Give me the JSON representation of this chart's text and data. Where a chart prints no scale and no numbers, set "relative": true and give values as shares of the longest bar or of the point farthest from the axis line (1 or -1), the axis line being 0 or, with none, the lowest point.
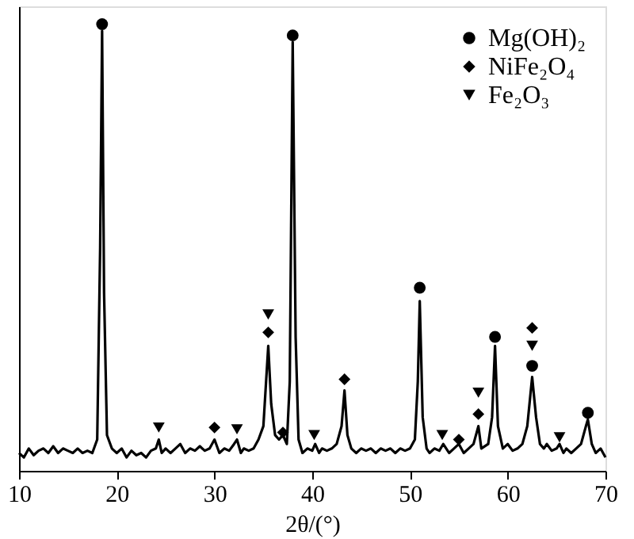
{
  "chart_data": {
    "type": "line",
    "xlabel": "2θ/(°)",
    "relative": true,
    "xlim": [
      10,
      70
    ],
    "xticks": [
      10,
      20,
      30,
      40,
      50,
      60,
      70
    ],
    "tick_labels": "x",
    "legend": "top right",
    "series": [
      {
        "color": "#000000",
        "x": [
          10,
          10.5,
          11,
          11.5,
          12,
          12.5,
          13,
          13.5,
          14,
          14.5,
          15,
          15.5,
          16,
          16.5,
          17,
          17.5,
          18,
          18.3,
          18.5,
          18.7,
          19,
          19.5,
          20,
          20.5,
          21,
          21.5,
          22,
          22.5,
          23,
          23.5,
          24,
          24.3,
          24.6,
          25,
          25.5,
          26,
          26.5,
          27,
          27.5,
          28,
          28.5,
          29,
          29.5,
          30,
          30.5,
          31,
          31.5,
          32,
          32.3,
          32.7,
          33,
          33.5,
          34,
          34.5,
          35,
          35.5,
          35.8,
          36.2,
          36.6,
          37,
          37.4,
          37.7,
          38,
          38.3,
          38.6,
          39,
          39.5,
          40,
          40.3,
          40.7,
          41,
          41.5,
          42,
          42.5,
          43,
          43.3,
          43.6,
          44,
          44.5,
          45,
          45.5,
          46,
          46.5,
          47,
          47.5,
          48,
          48.5,
          49,
          49.5,
          50,
          50.5,
          50.8,
          51,
          51.3,
          51.7,
          52,
          52.5,
          53,
          53.4,
          54,
          54.5,
          55,
          55.5,
          56,
          56.5,
          57,
          57.3,
          58,
          58.4,
          58.7,
          59,
          59.5,
          60,
          60.5,
          61,
          61.5,
          62,
          62.5,
          62.9,
          63.3,
          63.7,
          64,
          64.5,
          65,
          65.3,
          65.7,
          66,
          66.5,
          67,
          67.5,
          68,
          68.2,
          68.6,
          69,
          69.5,
          70
        ],
        "values": [
          0.04,
          0.03,
          0.05,
          0.035,
          0.045,
          0.05,
          0.04,
          0.055,
          0.04,
          0.05,
          0.045,
          0.04,
          0.05,
          0.04,
          0.045,
          0.04,
          0.07,
          0.5,
          0.985,
          0.4,
          0.08,
          0.05,
          0.04,
          0.05,
          0.03,
          0.045,
          0.035,
          0.04,
          0.03,
          0.045,
          0.05,
          0.07,
          0.04,
          0.05,
          0.04,
          0.05,
          0.06,
          0.04,
          0.05,
          0.045,
          0.055,
          0.045,
          0.05,
          0.07,
          0.04,
          0.05,
          0.045,
          0.06,
          0.07,
          0.04,
          0.05,
          0.045,
          0.05,
          0.07,
          0.1,
          0.28,
          0.15,
          0.08,
          0.07,
          0.08,
          0.06,
          0.2,
          0.96,
          0.3,
          0.07,
          0.04,
          0.05,
          0.045,
          0.06,
          0.04,
          0.05,
          0.045,
          0.05,
          0.06,
          0.1,
          0.18,
          0.08,
          0.05,
          0.04,
          0.05,
          0.045,
          0.05,
          0.04,
          0.05,
          0.045,
          0.05,
          0.04,
          0.05,
          0.045,
          0.05,
          0.07,
          0.2,
          0.38,
          0.12,
          0.05,
          0.04,
          0.05,
          0.045,
          0.06,
          0.04,
          0.05,
          0.06,
          0.04,
          0.05,
          0.06,
          0.1,
          0.05,
          0.06,
          0.12,
          0.28,
          0.1,
          0.05,
          0.06,
          0.045,
          0.05,
          0.06,
          0.1,
          0.21,
          0.12,
          0.06,
          0.05,
          0.06,
          0.045,
          0.05,
          0.06,
          0.04,
          0.05,
          0.04,
          0.05,
          0.06,
          0.1,
          0.115,
          0.06,
          0.04,
          0.05,
          0.03
        ]
      },
      {
        "type": "scatter",
        "name": "Mg(OH)₂",
        "color": "#000000",
        "marker": "circle",
        "x": [
          18.5,
          38.0,
          51.0,
          58.7,
          62.5,
          68.2
        ],
        "values": [
          1.0,
          0.975,
          0.41,
          0.3,
          0.235,
          0.13
        ]
      },
      {
        "type": "scatter",
        "name": "NiFe₂O₄",
        "color": "#000000",
        "marker": "diamond",
        "x": [
          30.0,
          35.5,
          37.0,
          43.3,
          55.0,
          57.0,
          62.5
        ],
        "values": [
          0.097,
          0.31,
          0.086,
          0.205,
          0.07,
          0.127,
          0.32
        ]
      },
      {
        "type": "scatter",
        "name": "Fe₂O₃",
        "color": "#000000",
        "marker": "triangle",
        "x": [
          24.3,
          32.3,
          35.5,
          40.2,
          53.3,
          57.0,
          62.5,
          65.3
        ],
        "values": [
          0.097,
          0.093,
          0.35,
          0.08,
          0.08,
          0.175,
          0.28,
          0.075
        ]
      }
    ]
  }
}
